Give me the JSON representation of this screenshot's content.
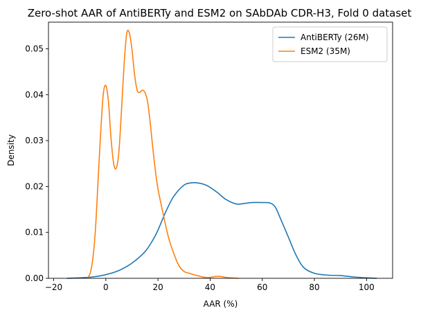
{
  "chart_data": {
    "type": "line",
    "title": "Zero-shot AAR of AntiBERTy and ESM2 on SAbDAb CDR-H3, Fold 0 dataset",
    "xlabel": "AAR (%)",
    "ylabel": "Density",
    "xlim": [
      -22,
      110
    ],
    "ylim": [
      0,
      0.0558
    ],
    "xticks": [
      -20,
      0,
      20,
      40,
      60,
      80,
      100
    ],
    "xtick_labels": [
      "−20",
      "0",
      "20",
      "40",
      "60",
      "80",
      "100"
    ],
    "yticks": [
      0,
      0.01,
      0.02,
      0.03,
      0.04,
      0.05
    ],
    "ytick_labels": [
      "0.00",
      "0.01",
      "0.02",
      "0.03",
      "0.04",
      "0.05"
    ],
    "grid": false,
    "legend_position": "top-right",
    "series": [
      {
        "name": "AntiBERTy (26M)",
        "color": "#1f77b4",
        "x": [
          -15,
          -10,
          -5,
          0,
          5,
          10,
          15,
          18,
          20,
          23,
          26,
          30,
          33,
          35,
          38,
          40,
          43,
          46,
          50,
          53,
          56,
          60,
          63,
          65,
          67,
          70,
          73,
          76,
          80,
          85,
          90,
          95,
          100,
          104
        ],
        "y": [
          0.0,
          0.0001,
          0.0003,
          0.0008,
          0.0017,
          0.0033,
          0.0058,
          0.0083,
          0.0105,
          0.0145,
          0.0178,
          0.0203,
          0.0208,
          0.0208,
          0.0204,
          0.0198,
          0.0186,
          0.0172,
          0.0162,
          0.0163,
          0.0165,
          0.0165,
          0.0164,
          0.0155,
          0.013,
          0.009,
          0.005,
          0.0023,
          0.0011,
          0.0007,
          0.0006,
          0.0003,
          0.0001,
          0.0
        ]
      },
      {
        "name": "ESM2 (35M)",
        "color": "#ff7f0e",
        "x": [
          -7,
          -6,
          -5,
          -4,
          -3,
          -2,
          -1,
          0,
          1,
          2,
          3,
          4,
          5,
          6,
          7,
          8,
          9,
          10,
          11,
          12,
          13,
          14,
          15,
          16,
          17,
          18,
          19,
          20,
          22,
          24,
          26,
          28,
          30,
          32,
          35,
          38,
          40,
          42,
          44,
          46,
          48,
          51
        ],
        "y": [
          0.0001,
          0.0011,
          0.0042,
          0.0105,
          0.021,
          0.0315,
          0.04,
          0.042,
          0.0385,
          0.0305,
          0.025,
          0.024,
          0.0275,
          0.0365,
          0.0465,
          0.0533,
          0.0535,
          0.05,
          0.0445,
          0.041,
          0.0405,
          0.041,
          0.0405,
          0.0385,
          0.034,
          0.0285,
          0.0235,
          0.0195,
          0.014,
          0.009,
          0.0055,
          0.0028,
          0.0015,
          0.0011,
          0.0006,
          0.0002,
          0.0002,
          0.0004,
          0.0004,
          0.0002,
          0.0001,
          0.0
        ]
      }
    ]
  }
}
